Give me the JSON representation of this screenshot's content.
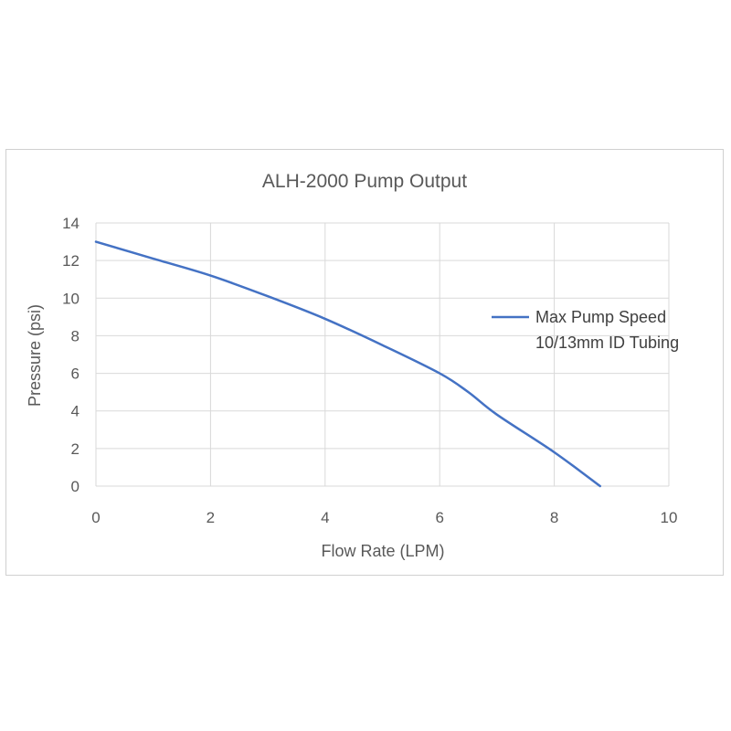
{
  "chart_data": {
    "type": "line",
    "title": "ALH-2000 Pump Output",
    "xlabel": "Flow Rate (LPM)",
    "ylabel": "Pressure (psi)",
    "xlim": [
      0,
      10
    ],
    "ylim": [
      0,
      14
    ],
    "x_ticks": [
      "0",
      "2",
      "4",
      "6",
      "8",
      "10"
    ],
    "y_ticks": [
      "0",
      "2",
      "4",
      "6",
      "8",
      "10",
      "12",
      "14"
    ],
    "grid": true,
    "legend_position": "right",
    "series": [
      {
        "name": "Max Pump Speed 10/13mm ID Tubing",
        "legend_lines": [
          "Max Pump Speed",
          "10/13mm ID Tubing"
        ],
        "color": "#4472c4",
        "x": [
          0,
          1,
          2,
          3,
          4,
          5,
          6,
          6.5,
          7,
          8,
          8.8
        ],
        "y": [
          13.0,
          12.1,
          11.2,
          10.1,
          8.9,
          7.5,
          6.0,
          5.0,
          3.8,
          1.8,
          0.0
        ]
      }
    ]
  }
}
